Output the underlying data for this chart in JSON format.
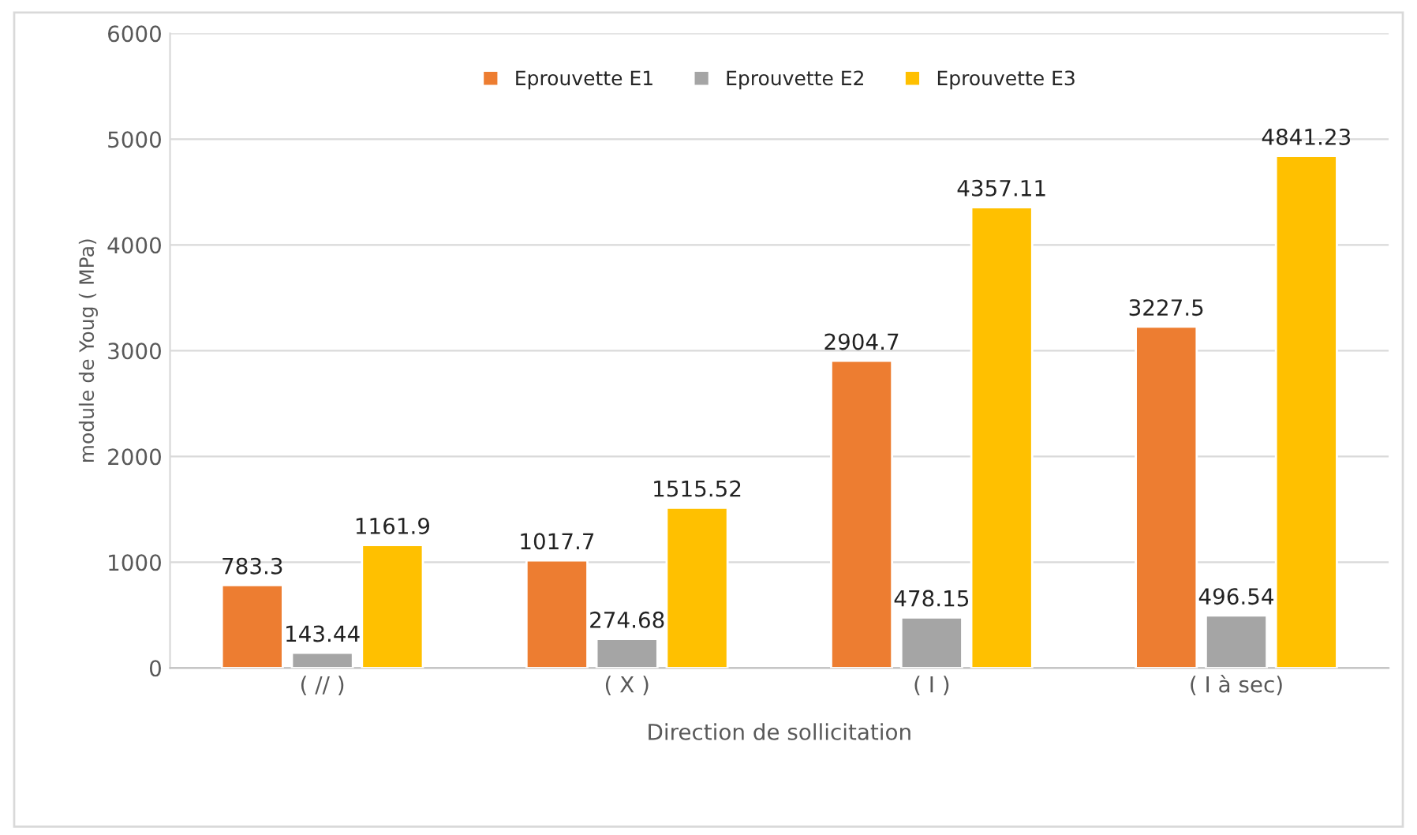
{
  "chart_data": {
    "type": "bar",
    "xlabel": "Direction de sollicitation",
    "ylabel": "module de Youg ( MPa)",
    "categories": [
      "( // )",
      "( X )",
      "( I )",
      "( I à sec)"
    ],
    "series": [
      {
        "name": "Eprouvette E1",
        "color": "#ed7d31",
        "values": [
          783.3,
          1017.7,
          2904.7,
          3227.5
        ]
      },
      {
        "name": "Eprouvette E2",
        "color": "#a5a5a5",
        "values": [
          143.44,
          274.68,
          478.15,
          496.54
        ]
      },
      {
        "name": "Eprouvette E3",
        "color": "#ffc000",
        "values": [
          1161.9,
          1515.52,
          4357.11,
          4841.23
        ]
      }
    ],
    "ylim": [
      0,
      6000
    ],
    "yticks": [
      0,
      1000,
      2000,
      3000,
      4000,
      5000,
      6000
    ],
    "grid": "y",
    "legend": "top",
    "data_labels": true
  }
}
